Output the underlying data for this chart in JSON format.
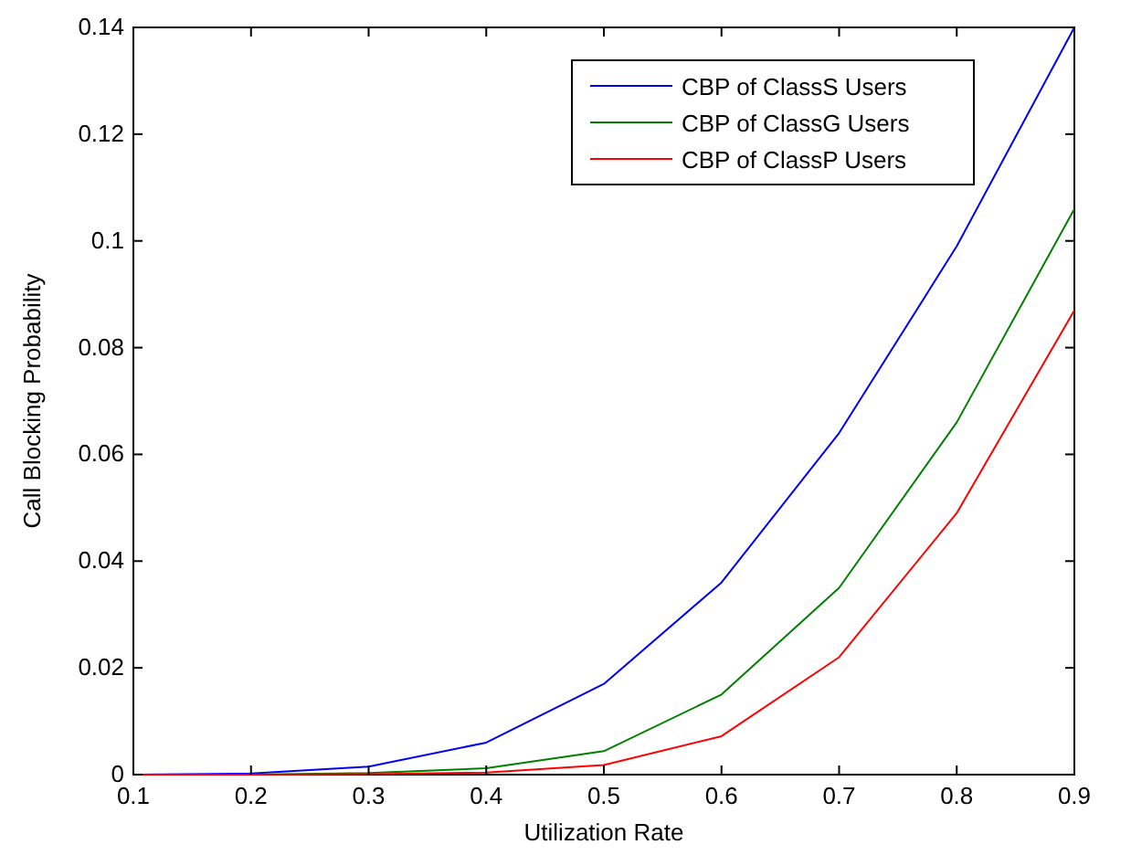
{
  "chart_data": {
    "type": "line",
    "xlabel": "Utilization Rate",
    "ylabel": "Call Blocking Probability",
    "x": [
      0.1,
      0.2,
      0.3,
      0.4,
      0.5,
      0.6,
      0.7,
      0.8,
      0.9
    ],
    "series": [
      {
        "name": "CBP of ClassS Users",
        "color": "#0000ff",
        "values": [
          0,
          0.0002,
          0.0015,
          0.006,
          0.017,
          0.036,
          0.064,
          0.099,
          0.14
        ]
      },
      {
        "name": "CBP of ClassG Users",
        "color": "#008000",
        "values": [
          0,
          0,
          0.0003,
          0.0012,
          0.0044,
          0.015,
          0.035,
          0.066,
          0.106
        ]
      },
      {
        "name": "CBP of ClassP Users",
        "color": "#ff0000",
        "values": [
          0,
          0,
          0.0001,
          0.0004,
          0.0018,
          0.0072,
          0.022,
          0.049,
          0.087
        ]
      }
    ],
    "xlim": [
      0.1,
      0.9
    ],
    "xticks": [
      0.1,
      0.2,
      0.3,
      0.4,
      0.5,
      0.6,
      0.7,
      0.8,
      0.9
    ],
    "ylim": [
      0,
      0.14
    ],
    "yticks": [
      0,
      0.02,
      0.04,
      0.06,
      0.08,
      0.1,
      0.12,
      0.14
    ],
    "legend": "top right",
    "grid": false,
    "marker": "none",
    "line_style": "solid"
  }
}
